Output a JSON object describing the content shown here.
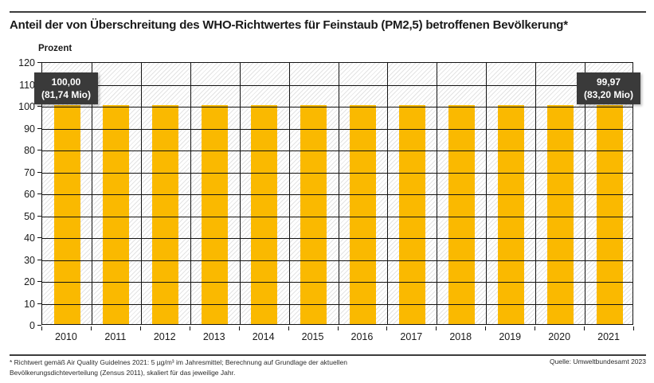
{
  "page": {
    "title": "Anteil der von Überschreitung des WHO-Richtwertes für Feinstaub (PM2,5) betroffenen Bevölkerung*",
    "footnote_line1": "* Richtwert gemäß Air Quality Guidelnes 2021: 5 µg/m³ im Jahresmittel; Berechnung auf Grundlage der aktuellen",
    "footnote_line2": "Bevölkerungsdichteverteilung (Zensus 2011), skaliert für das jeweilige Jahr.",
    "source": "Quelle: Umweltbundesamt 2023"
  },
  "chart_data": {
    "type": "bar",
    "title": "Anteil der von Überschreitung des WHO-Richtwertes für Feinstaub (PM2,5) betroffenen Bevölkerung*",
    "xlabel": "",
    "ylabel": "Prozent",
    "categories": [
      "2010",
      "2011",
      "2012",
      "2013",
      "2014",
      "2015",
      "2016",
      "2017",
      "2018",
      "2019",
      "2020",
      "2021"
    ],
    "values": [
      100.0,
      100,
      100,
      100,
      100,
      100,
      100,
      100,
      100,
      100,
      100,
      99.97
    ],
    "ylim": [
      0,
      120
    ],
    "ytick_step": 10,
    "grid": true,
    "legend": "none",
    "bar_color": "#FAB900",
    "grid_color": "#141414",
    "annotation_bg": "#3a3a3a",
    "annotations": [
      {
        "category": "2010",
        "line1": "100,00",
        "line2": "(81,74 Mio)"
      },
      {
        "category": "2021",
        "line1": "99,97",
        "line2": "(83,20 Mio)"
      }
    ]
  }
}
